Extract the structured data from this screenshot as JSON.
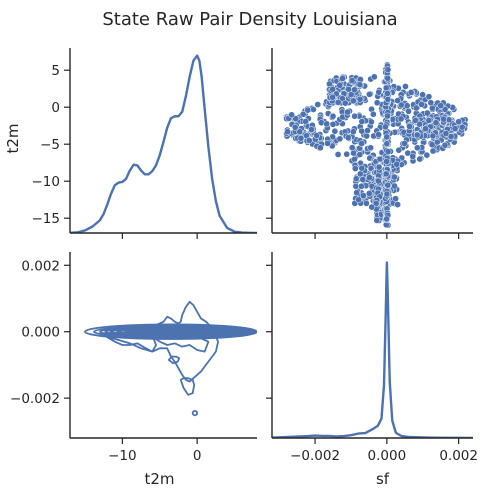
{
  "chart_data": {
    "type": "pairplot",
    "title": "State Raw Pair Density Louisiana",
    "variables": [
      "t2m",
      "sf"
    ],
    "colors": {
      "series": "#4c72b0",
      "point_edge": "#ffffff",
      "axis": "#262626"
    },
    "axes": {
      "t2m": {
        "label": "t2m",
        "range": [
          -17,
          8
        ],
        "ticks": [
          -15,
          -10,
          -5,
          0,
          5
        ],
        "tick_labels": [
          "−15",
          "−10",
          "−5",
          "0",
          "5"
        ],
        "bottom_ticks": [
          -10,
          0
        ],
        "bottom_tick_labels": [
          "−10",
          "0"
        ]
      },
      "sf": {
        "label": "sf",
        "range": [
          -0.0032,
          0.0024
        ],
        "ticks": [
          -0.002,
          0.0,
          0.002
        ],
        "tick_labels": [
          "−0.002",
          "0.000",
          "0.002"
        ]
      }
    },
    "panels": [
      {
        "id": "t2m-kde",
        "row": 0,
        "col": 0,
        "type": "kde",
        "x": [
          -17.5,
          -16,
          -15,
          -14,
          -13,
          -12.5,
          -12,
          -11.5,
          -11,
          -10.5,
          -10,
          -9.5,
          -9,
          -8.5,
          -8,
          -7.5,
          -7,
          -6.5,
          -6,
          -5.5,
          -5,
          -4.5,
          -4,
          -3.5,
          -3,
          -2.5,
          -2,
          -1.5,
          -1,
          -0.5,
          0,
          0.3,
          0.6,
          1,
          1.5,
          2,
          2.5,
          3,
          4,
          5,
          6,
          7.5,
          8.5
        ],
        "density": [
          0.0,
          0.001,
          0.004,
          0.01,
          0.02,
          0.03,
          0.045,
          0.062,
          0.075,
          0.079,
          0.08,
          0.085,
          0.098,
          0.107,
          0.106,
          0.098,
          0.092,
          0.092,
          0.097,
          0.106,
          0.122,
          0.143,
          0.165,
          0.18,
          0.183,
          0.183,
          0.19,
          0.215,
          0.245,
          0.27,
          0.278,
          0.27,
          0.245,
          0.195,
          0.135,
          0.085,
          0.05,
          0.027,
          0.008,
          0.002,
          0.0006,
          0.0001,
          0.0
        ],
        "ymax": 0.29
      },
      {
        "id": "scatter",
        "row": 0,
        "col": 1,
        "type": "scatter",
        "x_var": "sf",
        "y_var": "t2m",
        "clusters": [
          {
            "name": "zero-line",
            "x": [
              0.0,
              0.0
            ],
            "y": [
              -16,
              6
            ]
          },
          {
            "name": "main-body",
            "x": [
              -0.0028,
              0.0019
            ],
            "y": [
              -8,
              1
            ]
          },
          {
            "name": "upper-spike",
            "x": [
              -0.0015,
              -0.0008
            ],
            "y": [
              1,
              4
            ]
          },
          {
            "name": "lower-cone",
            "x": [
              -0.0006,
              0.0003
            ],
            "y": [
              -14.5,
              -7
            ]
          }
        ],
        "outliers": [
          {
            "x": -0.00045,
            "y": 3.8
          },
          {
            "x": -0.00035,
            "y": 4.1
          },
          {
            "x": 0.0004,
            "y": 0.3
          },
          {
            "x": 0.0021,
            "y": -2.7
          },
          {
            "x": 0.0019,
            "y": -2.9
          },
          {
            "x": -0.0003,
            "y": -13.0
          },
          {
            "x": -0.00042,
            "y": -13.5
          },
          {
            "x": -0.00028,
            "y": -15.3
          },
          {
            "x": 0.0003,
            "y": 0.9
          }
        ]
      },
      {
        "id": "kde2d",
        "row": 1,
        "col": 0,
        "type": "contour",
        "levels": [
          {
            "cx": -3.5,
            "cy": 0.0,
            "rx": 11.5,
            "ry": 0.00022
          },
          {
            "cx": -3.0,
            "cy": 0.0,
            "rx": 10.8,
            "ry": 0.00018
          },
          {
            "cx": -2.7,
            "cy": 0.0,
            "rx": 10.3,
            "ry": 0.00015
          },
          {
            "cx": -2.5,
            "cy": 0.0,
            "rx": 9.8,
            "ry": 0.00012
          },
          {
            "cx": -2.3,
            "cy": 0.0,
            "rx": 9.3,
            "ry": 0.0001
          },
          {
            "cx": -2.1,
            "cy": 0.0,
            "rx": 8.6,
            "ry": 8e-05
          },
          {
            "cx": -1.9,
            "cy": 0.0,
            "rx": 7.8,
            "ry": 6e-05
          },
          {
            "cx": -1.8,
            "cy": 0.0,
            "rx": 6.9,
            "ry": 4e-05
          },
          {
            "cx": -1.6,
            "cy": 0.0,
            "rx": 5.5,
            "ry": 2.5e-05
          }
        ],
        "outer": {
          "x": [
            -12.5,
            -11,
            -10,
            -9,
            -8,
            -7,
            -6,
            -5,
            -4,
            -3.5,
            -3,
            -2.5,
            -2,
            -1.5,
            -1,
            -0.5,
            0.5,
            1.5,
            2.5,
            2.8,
            2,
            1.2,
            0.5,
            0.0,
            -0.5,
            -1.0,
            -1.5,
            -2.0,
            -2.2,
            -2.5,
            -3,
            -3.5,
            -4,
            -4.5,
            -5.5,
            -6.5,
            -7.2,
            -7.0,
            -6.0,
            -5.5,
            -6.0,
            -7.5,
            -9,
            -10.5,
            -12.0,
            -12.5
          ],
          "y": [
            -0.0001,
            -0.0003,
            -0.0004,
            -0.0004,
            -0.00035,
            -0.00048,
            -0.0006,
            -0.0005,
            -0.0005,
            -0.00075,
            -0.0009,
            -0.0011,
            -0.0013,
            -0.00145,
            -0.0015,
            -0.0014,
            -0.0012,
            -0.0009,
            -0.0006,
            -0.0003,
            0.0001,
            0.0003,
            0.0004,
            0.0006,
            0.0008,
            0.0009,
            0.00075,
            0.0005,
            0.0003,
            0.00025,
            0.0003,
            0.0004,
            0.00045,
            0.0003,
            0.0002,
            0.00018,
            0.0001,
            0.0,
            -0.0001,
            -0.0004,
            -0.0006,
            -0.0005,
            -0.00035,
            -0.00025,
            -0.00015,
            -0.0001
          ]
        },
        "inner_paths": [
          {
            "x": [
              -6,
              -5,
              -4,
              -3,
              -2,
              -1,
              0,
              1,
              1.5,
              0.5,
              -1,
              -2,
              -3,
              -4,
              -5,
              -6
            ],
            "y": [
              -0.00015,
              -0.0003,
              -0.0004,
              -0.00035,
              -0.00045,
              -0.0004,
              -0.00055,
              -0.0006,
              -0.0003,
              -0.0002,
              -0.00015,
              -0.0002,
              -0.00015,
              -0.0002,
              -0.00018,
              -0.00015
            ]
          },
          {
            "x": [
              -2.2,
              -1.8,
              -1.2,
              -0.6,
              -0.4,
              -0.6,
              -1.2,
              -1.8,
              -2.2
            ],
            "y": [
              -0.00145,
              -0.0017,
              -0.0019,
              -0.00185,
              -0.0016,
              -0.00145,
              -0.0014,
              -0.0014,
              -0.00145
            ]
          },
          {
            "x": [
              -3.8,
              -3.2,
              -2.6,
              -2.4,
              -2.8,
              -3.4,
              -3.8
            ],
            "y": [
              -0.00085,
              -0.00095,
              -0.0009,
              -0.0008,
              -0.00075,
              -0.00075,
              -0.00085
            ]
          }
        ],
        "dots": [
          {
            "x": -0.3,
            "y": -0.00245
          }
        ]
      },
      {
        "id": "sf-kde",
        "row": 1,
        "col": 1,
        "type": "kde",
        "x": [
          -0.0035,
          -0.003,
          -0.0025,
          -0.0022,
          -0.002,
          -0.0018,
          -0.0016,
          -0.0014,
          -0.0012,
          -0.001,
          -0.0008,
          -0.0006,
          -0.0004,
          -0.00025,
          -0.00015,
          -8e-05,
          -3e-05,
          0.0,
          3e-05,
          8e-05,
          0.00015,
          0.00025,
          0.0004,
          0.0006,
          0.0009,
          0.0013,
          0.0018,
          0.0024
        ],
        "density": [
          0.0,
          0.004,
          0.008,
          0.011,
          0.014,
          0.012,
          0.012,
          0.009,
          0.011,
          0.016,
          0.025,
          0.028,
          0.05,
          0.07,
          0.11,
          0.3,
          0.72,
          1.0,
          0.78,
          0.32,
          0.1,
          0.03,
          0.012,
          0.006,
          0.004,
          0.002,
          0.001,
          0.0
        ],
        "ymax": 1.06
      }
    ]
  }
}
